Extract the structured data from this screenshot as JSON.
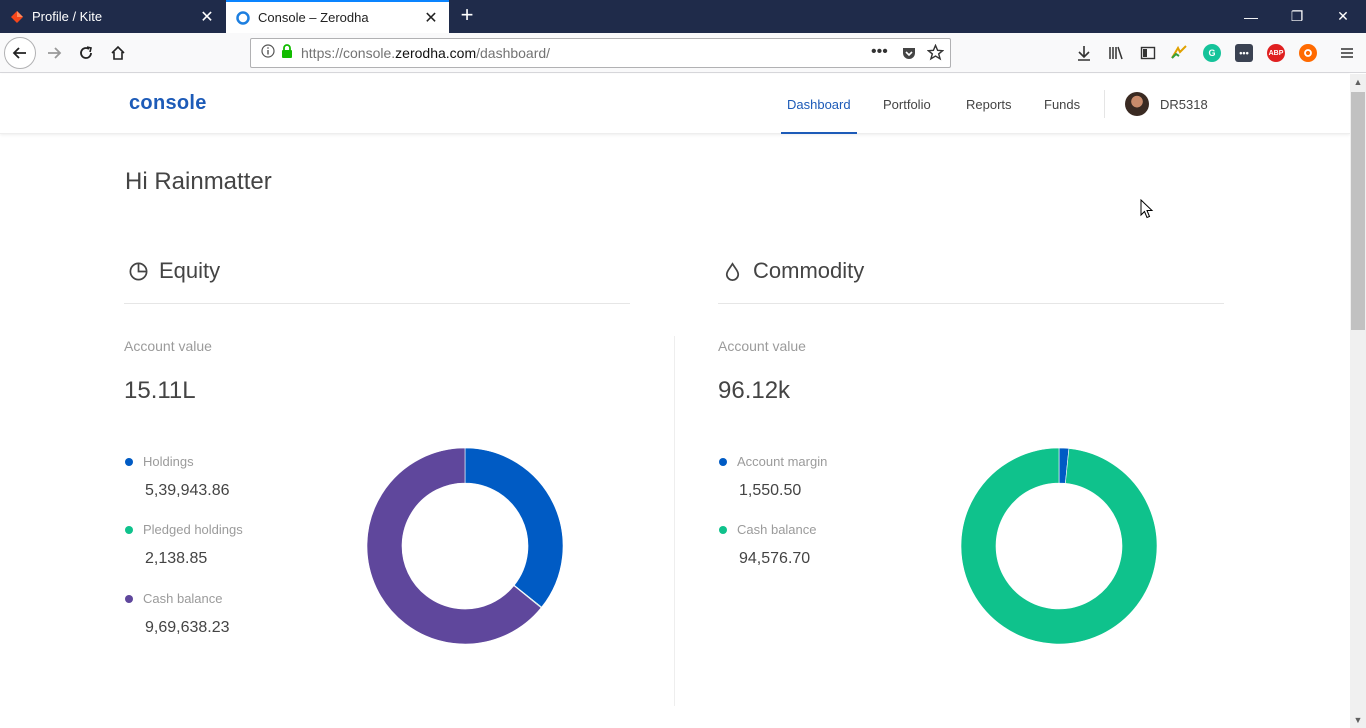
{
  "browser": {
    "tabs": [
      {
        "title": "Profile / Kite",
        "active": false
      },
      {
        "title": "Console – Zerodha",
        "active": true
      }
    ],
    "url": {
      "prefix": "https://console.",
      "domain": "zerodha.com",
      "path": "/dashboard/"
    }
  },
  "header": {
    "logo": "console",
    "nav": [
      "Dashboard",
      "Portfolio",
      "Reports",
      "Funds"
    ],
    "active_nav": "Dashboard",
    "user_id": "DR5318"
  },
  "greeting": "Hi Rainmatter",
  "equity": {
    "title": "Equity",
    "account_value_label": "Account value",
    "account_value": "15.11L",
    "legend": [
      {
        "name": "Holdings",
        "value": "5,39,943.86",
        "color": "#005bc4"
      },
      {
        "name": "Pledged holdings",
        "value": "2,138.85",
        "color": "#0fc28c"
      },
      {
        "name": "Cash balance",
        "value": "9,69,638.23",
        "color": "#5f479c"
      }
    ]
  },
  "commodity": {
    "title": "Commodity",
    "account_value_label": "Account value",
    "account_value": "96.12k",
    "legend": [
      {
        "name": "Account margin",
        "value": "1,550.50",
        "color": "#005bc4"
      },
      {
        "name": "Cash balance",
        "value": "94,576.70",
        "color": "#0fc28c"
      }
    ]
  },
  "chart_data": [
    {
      "type": "pie",
      "categories": [
        "Holdings",
        "Pledged holdings",
        "Cash balance"
      ],
      "values": [
        539943.86,
        2138.85,
        969638.23
      ],
      "colors": [
        "#005bc4",
        "#0fc28c",
        "#5f479c"
      ]
    },
    {
      "type": "pie",
      "categories": [
        "Account margin",
        "Cash balance"
      ],
      "values": [
        1550.5,
        94576.7
      ],
      "colors": [
        "#005bc4",
        "#0fc28c"
      ]
    }
  ]
}
